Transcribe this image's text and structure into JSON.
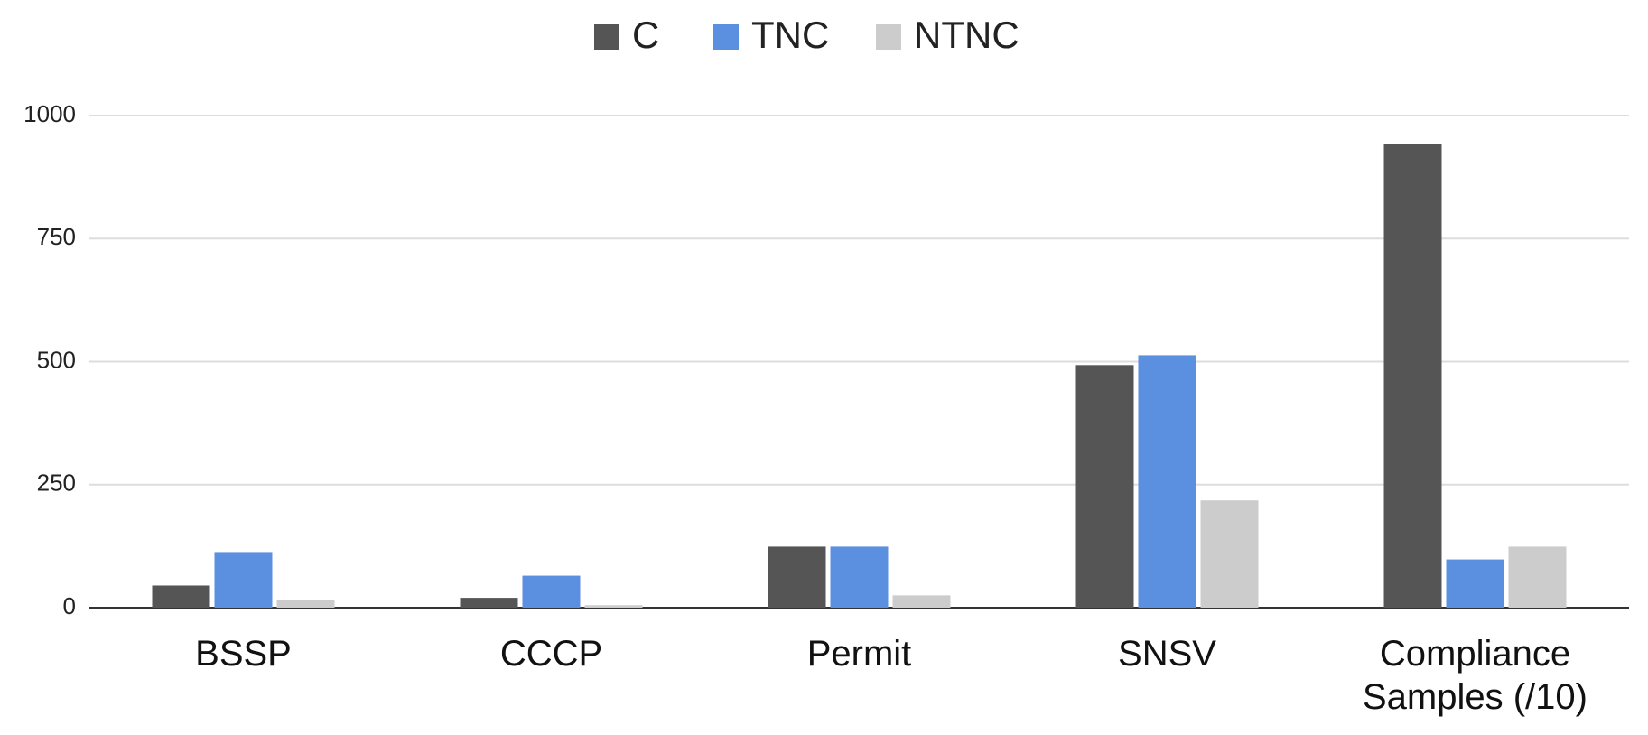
{
  "chart_data": {
    "type": "bar",
    "categories": [
      "BSSP",
      "CCCP",
      "Permit",
      "SNSV",
      "Compliance Samples (/10)"
    ],
    "series": [
      {
        "name": "C",
        "color": "#555555",
        "values": [
          45,
          20,
          124,
          493,
          942
        ]
      },
      {
        "name": "TNC",
        "color": "#5b8fe0",
        "values": [
          113,
          65,
          124,
          513,
          98
        ]
      },
      {
        "name": "NTNC",
        "color": "#cccccc",
        "values": [
          15,
          5,
          25,
          218,
          124
        ]
      }
    ],
    "ylim": [
      0,
      1000
    ],
    "yticks": [
      0,
      250,
      500,
      750,
      1000
    ],
    "grid": true,
    "legend": "top"
  }
}
